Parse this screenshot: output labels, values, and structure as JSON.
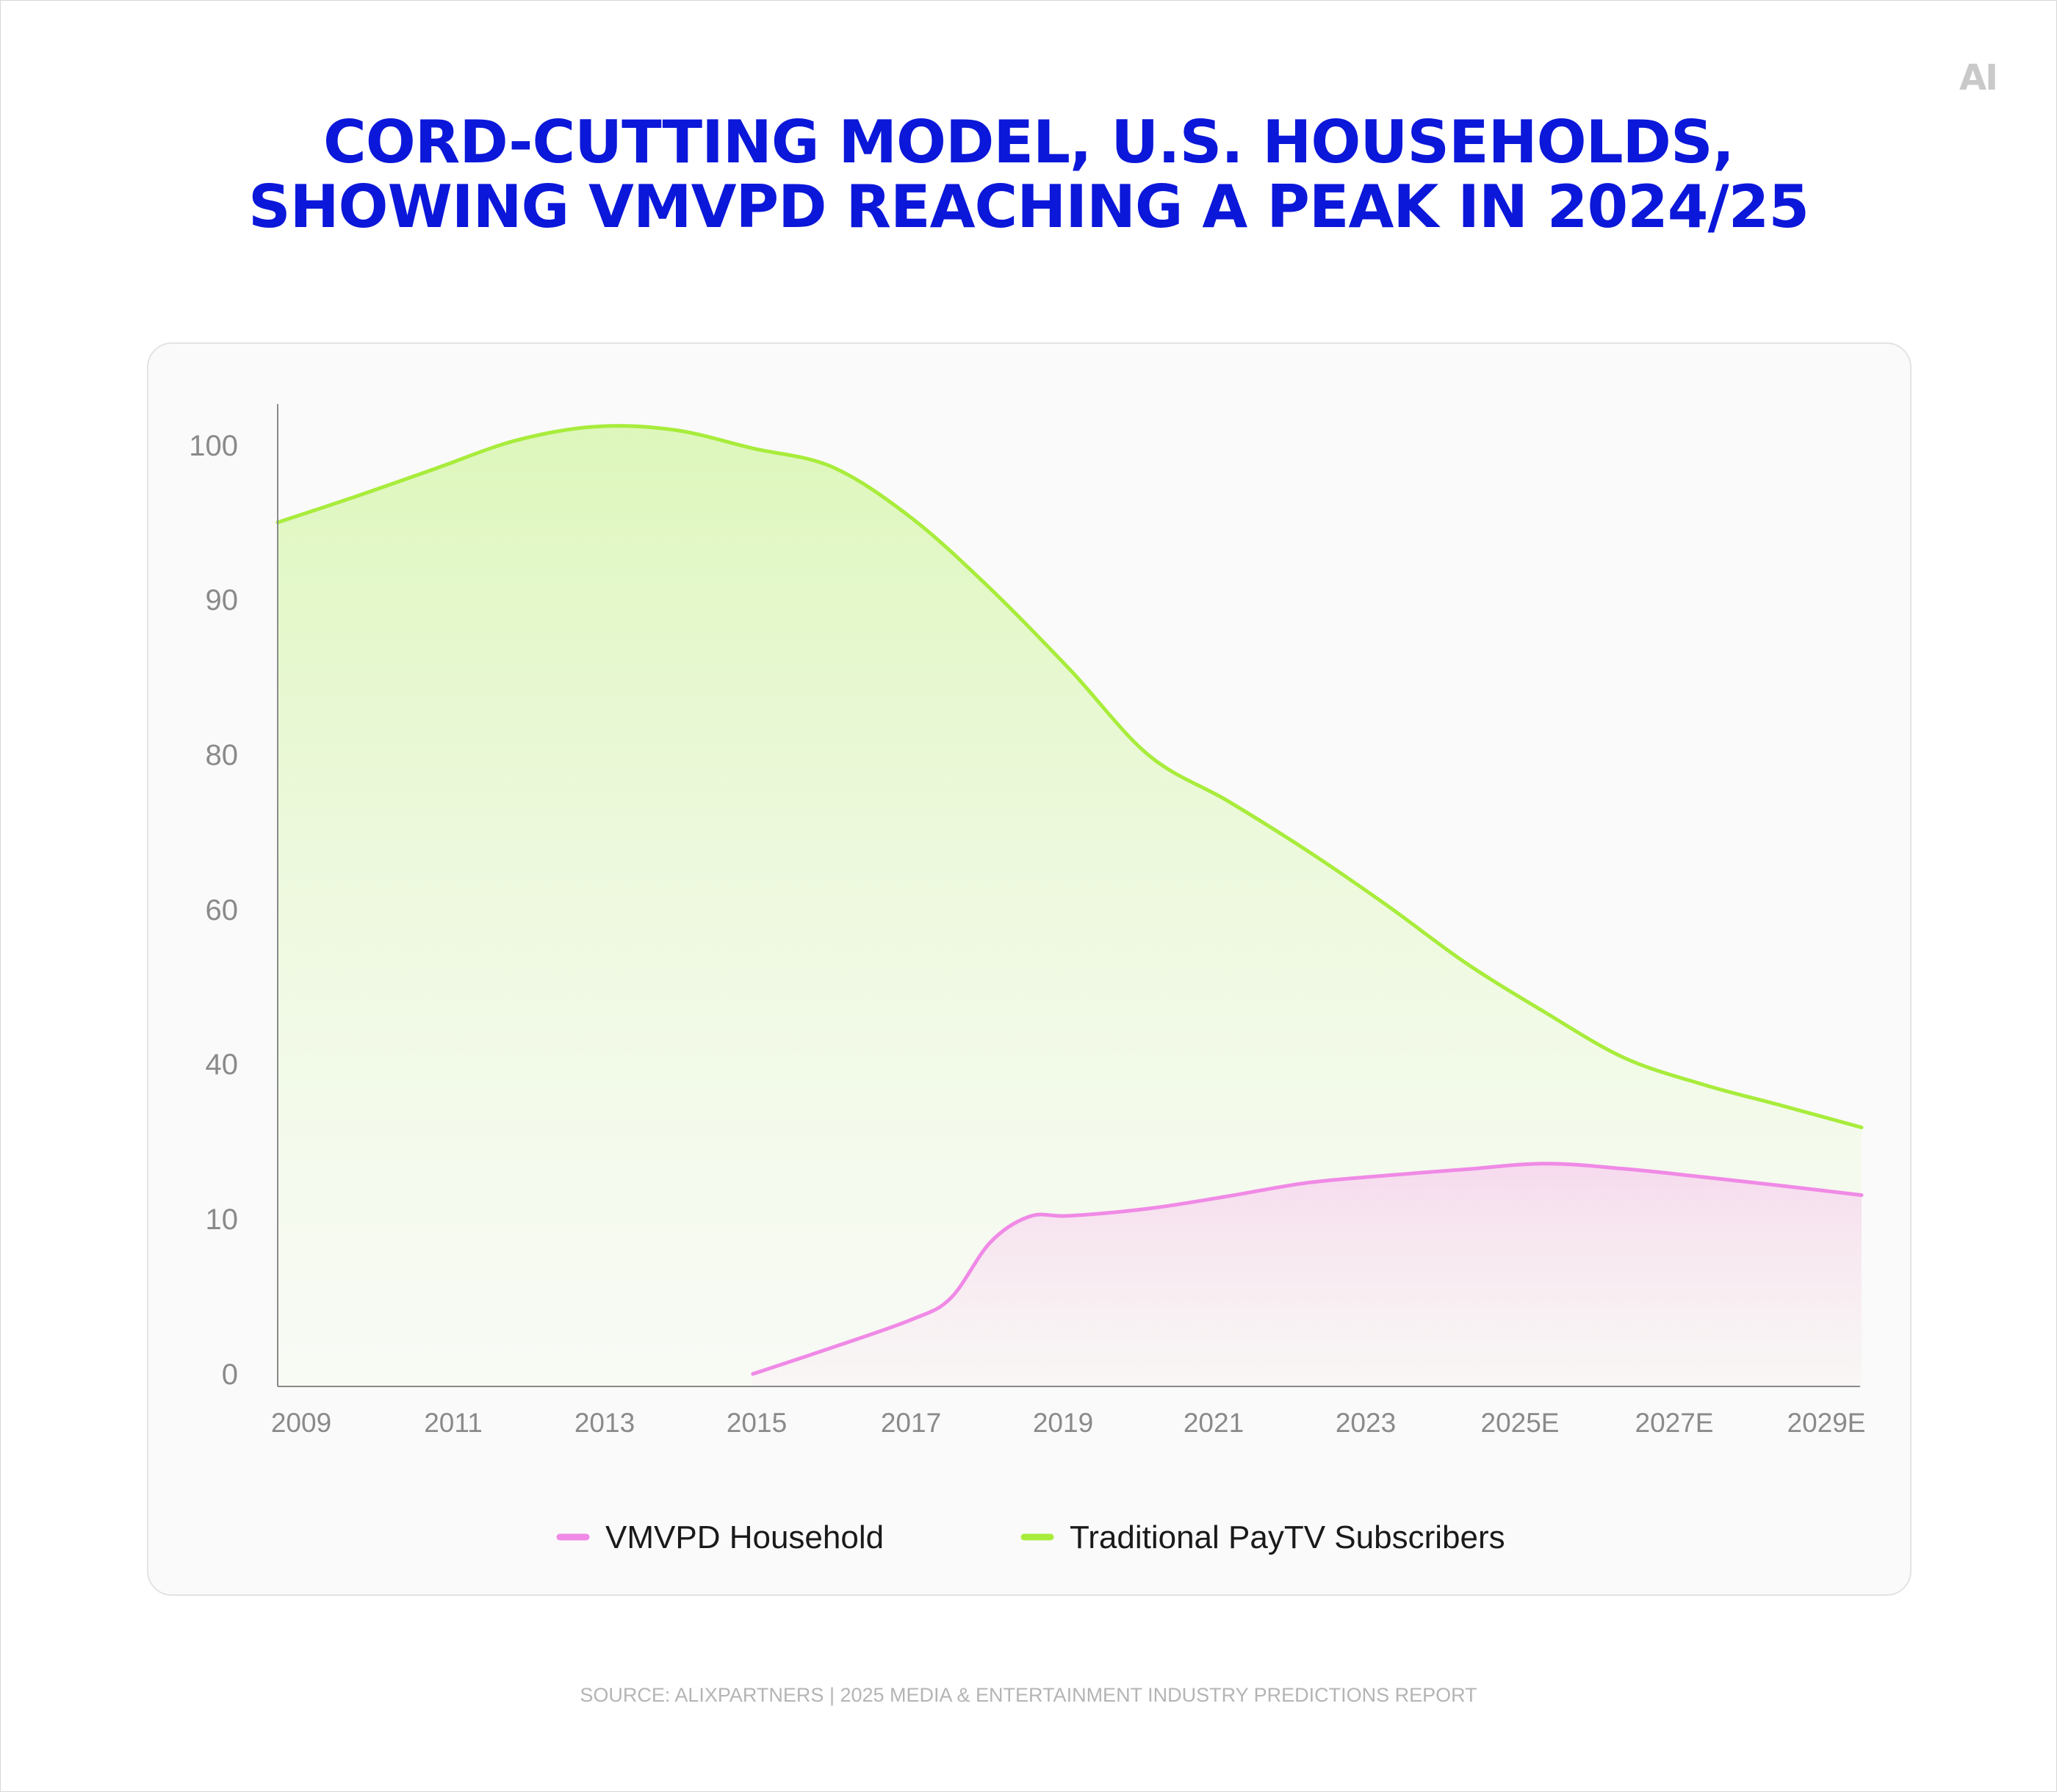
{
  "brand": {
    "logo_text": "AI"
  },
  "title": {
    "line1": "CORD-CUTTING MODEL, U.S. HOUSEHOLDS,",
    "line2": "SHOWING VMVPD REACHING A PEAK IN 2024/25"
  },
  "source": "SOURCE: ALIXPARTNERS | 2025 MEDIA & ENTERTAINMENT INDUSTRY PREDICTIONS REPORT",
  "chart_data": {
    "type": "area",
    "title": "CORD-CUTTING MODEL, U.S. HOUSEHOLDS, SHOWING VMVPD REACHING A PEAK IN 2024/25",
    "xlabel": "",
    "ylabel": "",
    "y_ticks": [
      "0",
      "10",
      "40",
      "60",
      "80",
      "90",
      "100"
    ],
    "x_ticks": [
      "2009",
      "2011",
      "2013",
      "2015",
      "2017",
      "2019",
      "2021",
      "2023",
      "2025E",
      "2027E",
      "2029E"
    ],
    "grid": false,
    "legend_position": "bottom-center",
    "series": [
      {
        "name": "VMVPD Household",
        "color": "#f08ae6",
        "x": [
          "2015",
          "2016",
          "2017",
          "2017.5",
          "2018",
          "2018.5",
          "2019",
          "2020",
          "2021",
          "2022",
          "2023",
          "2024",
          "2025E",
          "2026E",
          "2027E",
          "2028E",
          "2029E"
        ],
        "values": [
          0,
          1.7,
          3.5,
          4.9,
          8.5,
          10.5,
          10.6,
          12,
          14.4,
          17,
          18.4,
          19.6,
          20.7,
          19.7,
          18.1,
          16.4,
          14.6
        ]
      },
      {
        "name": "Traditional PayTV Subscribers",
        "color": "#a8ec3c",
        "x": [
          "2009",
          "2010",
          "2011",
          "2012",
          "2013",
          "2014",
          "2015",
          "2016",
          "2017",
          "2018",
          "2019",
          "2020",
          "2021",
          "2022",
          "2023",
          "2024",
          "2025E",
          "2026E",
          "2027E",
          "2028E",
          "2029E"
        ],
        "values": [
          95,
          96.7,
          98.5,
          100.3,
          101.2,
          101,
          99.8,
          98.6,
          95.3,
          90.7,
          85.5,
          79.9,
          74,
          67.6,
          60.6,
          53.1,
          46.7,
          40.8,
          36,
          31.9,
          27.7
        ]
      }
    ]
  }
}
